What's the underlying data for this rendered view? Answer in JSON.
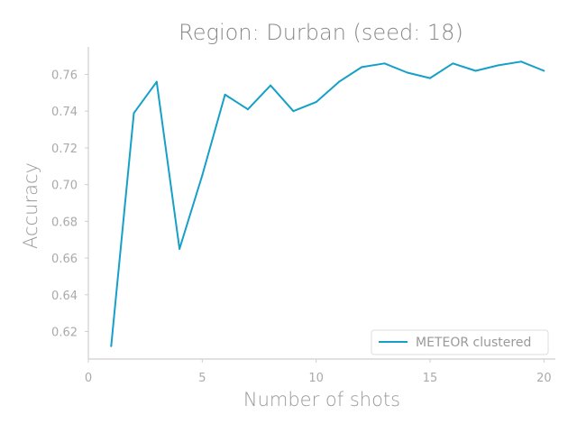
{
  "chart_data": {
    "type": "line",
    "title": "Region: Durban (seed: 18)",
    "xlabel": "Number of shots",
    "ylabel": "Accuracy",
    "xlim": [
      0,
      20.5
    ],
    "ylim": [
      0.605,
      0.775
    ],
    "xticks": [
      0,
      5,
      10,
      15,
      20
    ],
    "yticks": [
      0.62,
      0.64,
      0.66,
      0.68,
      0.7,
      0.72,
      0.74,
      0.76
    ],
    "ytick_labels": [
      "0.62",
      "0.64",
      "0.66",
      "0.68",
      "0.70",
      "0.72",
      "0.74",
      "0.76"
    ],
    "grid": false,
    "legend": "lower-right",
    "series": [
      {
        "name": "METEOR clustered",
        "color": "#16a0c8",
        "x": [
          1,
          2,
          3,
          4,
          5,
          6,
          7,
          8,
          9,
          10,
          11,
          12,
          13,
          14,
          15,
          16,
          17,
          18,
          19,
          20
        ],
        "y": [
          0.612,
          0.739,
          0.756,
          0.665,
          0.705,
          0.749,
          0.741,
          0.754,
          0.74,
          0.745,
          0.756,
          0.764,
          0.766,
          0.761,
          0.758,
          0.766,
          0.762,
          0.765,
          0.767,
          0.762
        ]
      }
    ]
  }
}
